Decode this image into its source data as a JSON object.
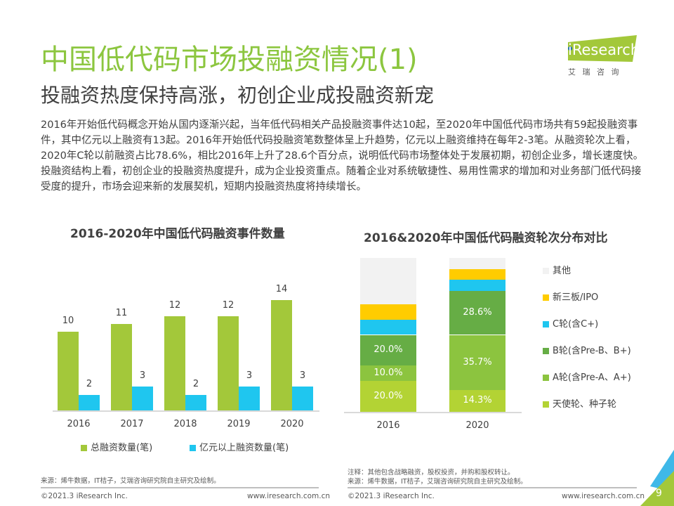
{
  "title": "中国低代码市场投融资情况(1)",
  "subtitle": "投融资热度保持高涨，初创企业成投融资新宠",
  "body": "2016年开始低代码概念开始从国内逐渐兴起，当年低代码相关产品投融资事件达10起，至2020年中国低代码市场共有59起投融资事件，其中亿元以上融资有13起。2016年开始低代码投融资笔数整体呈上升趋势，亿元以上融资维持在每年2-3笔。从融资轮次上看，2020年C轮以前融资占比78.6%，相比2016年上升了28.6个百分点，说明低代码市场整体处于发展初期，初创企业多，增长速度快。投融资结构上看，初创企业的投融资热度提升，成为企业投资重点。随着企业对系统敏捷性、易用性需求的增加和对业务部门低代码接受度的提升，市场会迎来新的发展契机，短期内投融资热度将持续增长。",
  "logo": {
    "brand": "iResearch",
    "cn": "艾 瑞 咨 询"
  },
  "chart_data": [
    {
      "type": "bar",
      "title": "2016-2020年中国低代码融资事件数量",
      "categories": [
        "2016",
        "2017",
        "2018",
        "2019",
        "2020"
      ],
      "series": [
        {
          "name": "总融资数量(笔)",
          "values": [
            10,
            11,
            12,
            12,
            14
          ],
          "color": "#a3c83a"
        },
        {
          "name": "亿元以上融资数量(笔)",
          "values": [
            2,
            3,
            2,
            3,
            3
          ],
          "color": "#1fc6ef"
        }
      ],
      "ylim": [
        0,
        16
      ]
    },
    {
      "type": "bar",
      "stacked": true,
      "title": "2016&2020年中国低代码融资轮次分布对比",
      "categories": [
        "2016",
        "2020"
      ],
      "series": [
        {
          "name": "天使轮、种子轮",
          "values": [
            20.0,
            14.3
          ],
          "labels": [
            "20.0%",
            "14.3%"
          ],
          "color": "#b3d334"
        },
        {
          "name": "A轮(含Pre-A、A+)",
          "values": [
            10.0,
            35.7
          ],
          "labels": [
            "10.0%",
            "35.7%"
          ],
          "color": "#8cc43f"
        },
        {
          "name": "B轮(含Pre-B、B+)",
          "values": [
            20.0,
            28.6
          ],
          "labels": [
            "20.0%",
            "28.6%"
          ],
          "color": "#66ad45"
        },
        {
          "name": "C轮(含C+)",
          "values": [
            10.0,
            7.1
          ],
          "labels": [
            "",
            ""
          ],
          "color": "#1fc6ef"
        },
        {
          "name": "新三板/IPO",
          "values": [
            10.0,
            7.1
          ],
          "labels": [
            "",
            ""
          ],
          "color": "#ffcc00"
        },
        {
          "name": "其他",
          "values": [
            30.0,
            7.2
          ],
          "labels": [
            "",
            ""
          ],
          "color": "#f2f2f2"
        }
      ],
      "ylim": [
        0,
        100
      ]
    }
  ],
  "notes": {
    "left_source": "来源：烯牛数据，IT桔子，艾瑞咨询研究院自主研究及绘制。",
    "right_note": "注释：其他包含战略融资，股权投资，并购和股权转让。",
    "right_source": "来源：烯牛数据，IT桔子，艾瑞咨询研究院自主研究及绘制。"
  },
  "footer": {
    "copyright": "©2021.3 iResearch Inc.",
    "url": "www.iresearch.com.cn",
    "page": "9"
  }
}
